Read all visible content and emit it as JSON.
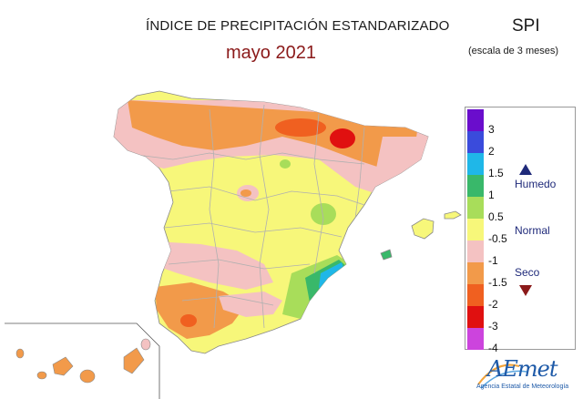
{
  "header": {
    "title": "ÍNDICE DE PRECIPITACIÓN ESTANDARIZADO",
    "period": "mayo 2021",
    "index_name": "SPI",
    "scale_note": "(escala de 3 meses)"
  },
  "legend": {
    "labels": [
      "3",
      "2",
      "1.5",
      "1",
      "0.5",
      "-0.5",
      "-1",
      "-1.5",
      "-2",
      "-3",
      "-4"
    ],
    "colors": [
      "#6a0dcc",
      "#3a4bdc",
      "#1fb7e8",
      "#39b86a",
      "#a8dd5a",
      "#f7f77a",
      "#f4c2c2",
      "#f29a4a",
      "#f06020",
      "#e01010",
      "#cc44dd"
    ],
    "humedo_label": "Humedo",
    "normal_label": "Normal",
    "seco_label": "Seco",
    "humedo_color": "#1f2a7a",
    "seco_color": "#8b1a1a"
  },
  "logo": {
    "text": "AEmet",
    "subtext": "Agencia Estatal de Meteorología"
  },
  "colors": {
    "sea": "#ffffff",
    "border": "#b0b0b0"
  }
}
